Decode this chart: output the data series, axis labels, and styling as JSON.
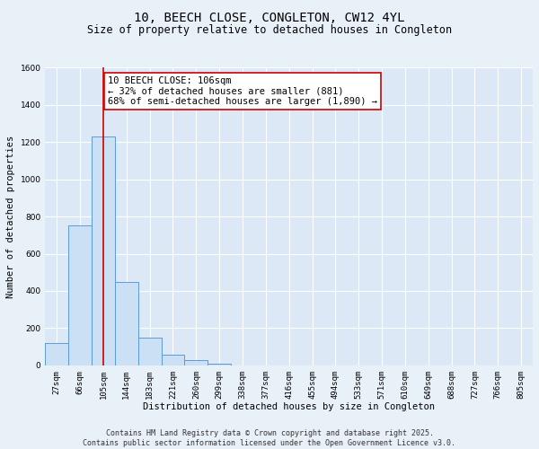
{
  "title1": "10, BEECH CLOSE, CONGLETON, CW12 4YL",
  "title2": "Size of property relative to detached houses in Congleton",
  "xlabel": "Distribution of detached houses by size in Congleton",
  "ylabel": "Number of detached properties",
  "bar_labels": [
    "27sqm",
    "66sqm",
    "105sqm",
    "144sqm",
    "183sqm",
    "221sqm",
    "260sqm",
    "299sqm",
    "338sqm",
    "377sqm",
    "416sqm",
    "455sqm",
    "494sqm",
    "533sqm",
    "571sqm",
    "610sqm",
    "649sqm",
    "688sqm",
    "727sqm",
    "766sqm",
    "805sqm"
  ],
  "bar_values": [
    120,
    750,
    1230,
    450,
    150,
    55,
    30,
    10,
    0,
    0,
    0,
    0,
    0,
    0,
    0,
    0,
    0,
    0,
    0,
    0,
    0
  ],
  "bar_color": "#cce0f5",
  "bar_edge_color": "#5b9bd5",
  "vline_x": 2,
  "vline_color": "#cc0000",
  "annotation_text": "10 BEECH CLOSE: 106sqm\n← 32% of detached houses are smaller (881)\n68% of semi-detached houses are larger (1,890) →",
  "annotation_box_color": "#ffffff",
  "annotation_box_edge": "#cc0000",
  "ylim": [
    0,
    1600
  ],
  "yticks": [
    0,
    200,
    400,
    600,
    800,
    1000,
    1200,
    1400,
    1600
  ],
  "bg_color": "#dce8f5",
  "fig_bg_color": "#e8f0f8",
  "footer_line1": "Contains HM Land Registry data © Crown copyright and database right 2025.",
  "footer_line2": "Contains public sector information licensed under the Open Government Licence v3.0.",
  "title_fontsize": 10,
  "subtitle_fontsize": 8.5,
  "axis_label_fontsize": 7.5,
  "tick_fontsize": 6.5,
  "annotation_fontsize": 7.5,
  "footer_fontsize": 6.0
}
